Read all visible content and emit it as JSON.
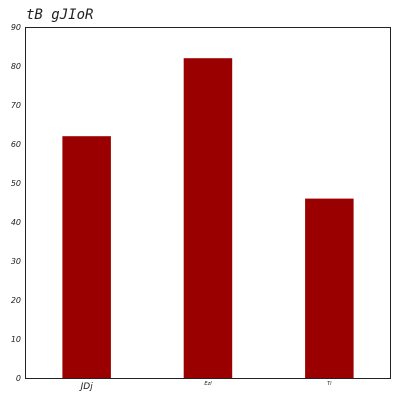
{
  "chart_data": {
    "type": "bar",
    "title": "tB gJIoR",
    "categories": [
      "JDj",
      "Ezl",
      "Ti"
    ],
    "values": [
      62,
      82,
      46
    ],
    "ylim": [
      0,
      90
    ],
    "yticks": [
      "0",
      "10",
      "20",
      "30",
      "40",
      "50",
      "60",
      "70",
      "80",
      "90"
    ],
    "xlabel": "",
    "ylabel": "",
    "grid": false,
    "bar_color": "#9b0000"
  }
}
